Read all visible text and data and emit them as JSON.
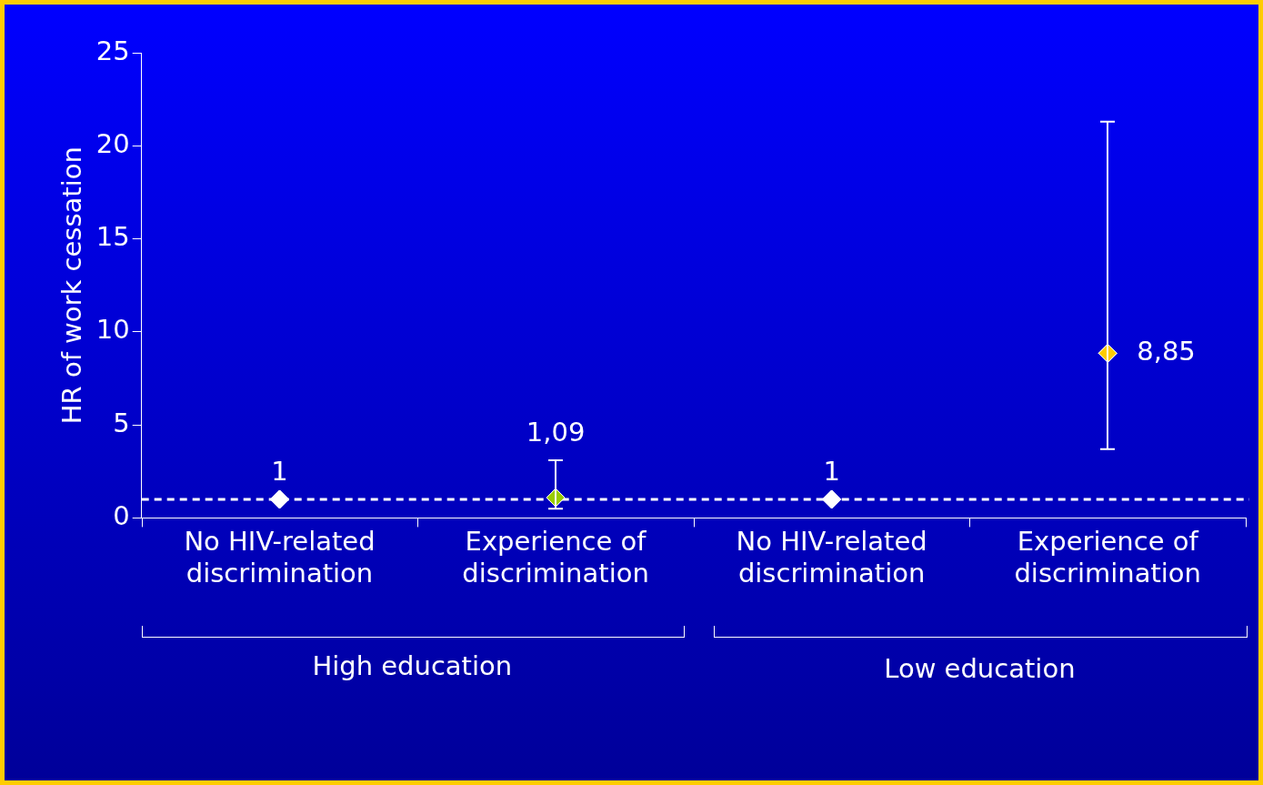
{
  "chart_data": {
    "type": "scatter",
    "ylabel": "HR of work cessation",
    "categories": [
      "No HIV-related discrimination",
      "Experience of discrimination",
      "No HIV-related discrimination",
      "Experience of discrimination"
    ],
    "values": [
      1,
      1.09,
      1,
      8.85
    ],
    "colors": [
      "#ffffff",
      "#99cc00",
      "#ffffff",
      "#ffcc00"
    ],
    "errors": [
      null,
      [
        0.5,
        3.1
      ],
      null,
      [
        3.7,
        21.3
      ]
    ],
    "value_labels": [
      "1",
      "1,09",
      "1",
      "8,85"
    ],
    "ylim": [
      0,
      25
    ],
    "yticks": [
      0,
      5,
      10,
      15,
      20,
      25
    ],
    "ref_lines": [
      {
        "axis": "y",
        "value": 1,
        "color": "#ffffff",
        "line_style": "dashed"
      }
    ],
    "annotations": [
      "High education",
      "Low education"
    ],
    "marker": "diamond",
    "grid": false,
    "legend": false
  }
}
